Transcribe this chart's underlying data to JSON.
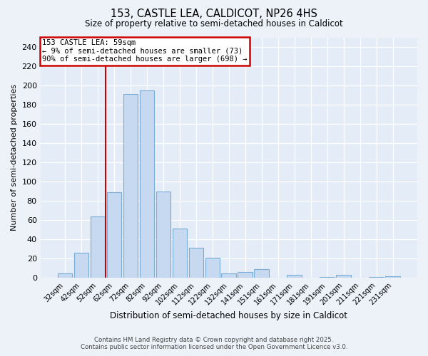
{
  "title1": "153, CASTLE LEA, CALDICOT, NP26 4HS",
  "title2": "Size of property relative to semi-detached houses in Caldicot",
  "xlabel": "Distribution of semi-detached houses by size in Caldicot",
  "ylabel": "Number of semi-detached properties",
  "categories": [
    "32sqm",
    "42sqm",
    "52sqm",
    "62sqm",
    "72sqm",
    "82sqm",
    "92sqm",
    "102sqm",
    "112sqm",
    "122sqm",
    "132sqm",
    "141sqm",
    "151sqm",
    "161sqm",
    "171sqm",
    "181sqm",
    "191sqm",
    "201sqm",
    "211sqm",
    "221sqm",
    "231sqm"
  ],
  "values": [
    5,
    26,
    64,
    89,
    191,
    195,
    90,
    51,
    31,
    21,
    5,
    6,
    9,
    0,
    3,
    0,
    1,
    3,
    0,
    1,
    2
  ],
  "bar_color": "#c6d9f0",
  "bar_edge_color": "#7aadd4",
  "vline_x_index": 2.5,
  "annotation_title": "153 CASTLE LEA: 59sqm",
  "annotation_line1": "← 9% of semi-detached houses are smaller (73)",
  "annotation_line2": "90% of semi-detached houses are larger (698) →",
  "vline_color": "#cc0000",
  "annotation_box_edge_color": "#cc0000",
  "ylim": [
    0,
    250
  ],
  "yticks": [
    0,
    20,
    40,
    60,
    80,
    100,
    120,
    140,
    160,
    180,
    200,
    220,
    240
  ],
  "footer1": "Contains HM Land Registry data © Crown copyright and database right 2025.",
  "footer2": "Contains public sector information licensed under the Open Government Licence v3.0.",
  "background_color": "#edf2f9",
  "plot_bg_color": "#e4ecf7"
}
